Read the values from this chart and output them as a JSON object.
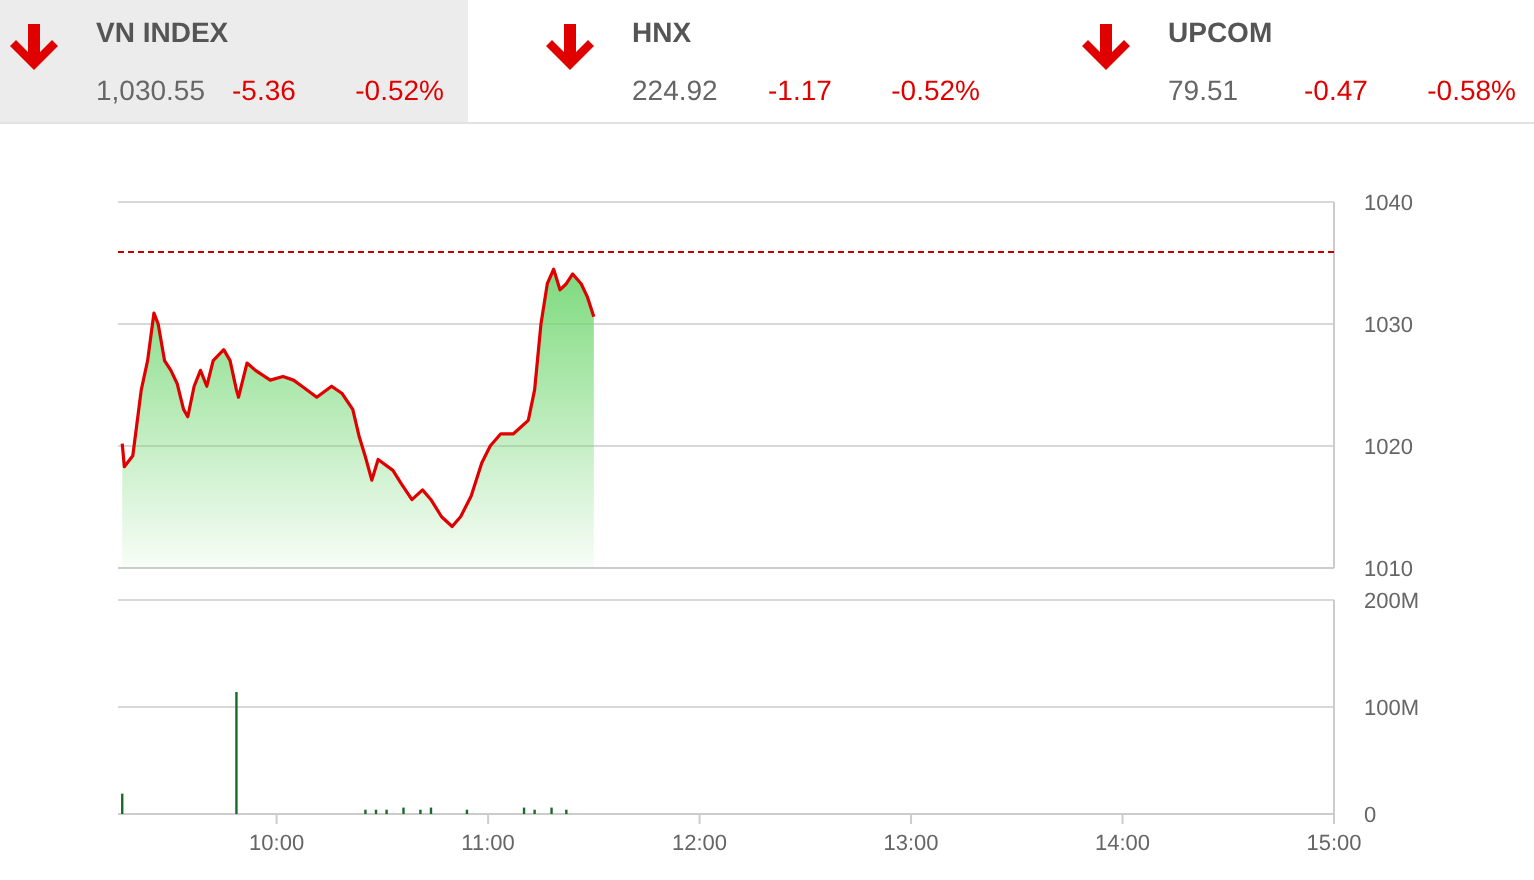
{
  "chart_data": [
    {
      "type": "other",
      "annotations": [
        "VN INDEX",
        "1,030.55",
        "-5.36",
        "-0.52%",
        "HNX",
        "224.92",
        "-1.17",
        "-0.52%",
        "UPCOM",
        "79.51",
        "-0.47",
        "-0.58%"
      ]
    },
    {
      "type": "area",
      "xlim": [
        9.25,
        15
      ],
      "ylim": [
        1010,
        1040
      ],
      "yticks": [
        1010,
        1020,
        1030,
        1040
      ],
      "grid": "y",
      "tick_labels": "y",
      "x": [
        9.27,
        9.28,
        9.32,
        9.36,
        9.39,
        9.42,
        9.44,
        9.47,
        9.5,
        9.53,
        9.56,
        9.58,
        9.61,
        9.64,
        9.67,
        9.7,
        9.75,
        9.78,
        9.81,
        9.82,
        9.86,
        9.9,
        9.97,
        10.03,
        10.08,
        10.12,
        10.19,
        10.26,
        10.31,
        10.36,
        10.39,
        10.42,
        10.45,
        10.48,
        10.55,
        10.59,
        10.64,
        10.69,
        10.73,
        10.78,
        10.83,
        10.87,
        10.92,
        10.97,
        11.01,
        11.06,
        11.12,
        11.19,
        11.22,
        11.25,
        11.28,
        11.31,
        11.34,
        11.37,
        11.4,
        11.44,
        11.47,
        11.5
      ],
      "series": [
        {
          "color": "#e00000",
          "values": [
            1020.2,
            1018.3,
            1019.2,
            1024.6,
            1027.0,
            1030.9,
            1030.0,
            1027.0,
            1026.2,
            1025.1,
            1023.0,
            1022.4,
            1024.9,
            1026.2,
            1024.9,
            1027.0,
            1027.9,
            1027.0,
            1024.6,
            1024.0,
            1026.8,
            1026.2,
            1025.4,
            1025.7,
            1025.4,
            1024.9,
            1024.0,
            1024.9,
            1024.3,
            1023.0,
            1020.8,
            1019.1,
            1017.2,
            1018.9,
            1018.0,
            1016.9,
            1015.6,
            1016.4,
            1015.6,
            1014.2,
            1013.4,
            1014.2,
            1015.9,
            1018.6,
            1020.0,
            1021.0,
            1021.0,
            1022.1,
            1024.6,
            1030.0,
            1033.3,
            1034.5,
            1032.8,
            1033.3,
            1034.1,
            1033.3,
            1032.2,
            1030.6
          ]
        }
      ],
      "ref_lines": [
        {
          "axis": "y",
          "value": 1035.91,
          "color": "#c00000",
          "line_style": "dashed"
        }
      ]
    },
    {
      "type": "bar",
      "xlim": [
        9.25,
        15
      ],
      "xticks": [
        {
          "value": 10,
          "label": "10:00"
        },
        {
          "value": 11,
          "label": "11:00"
        },
        {
          "value": 12,
          "label": "12:00"
        },
        {
          "value": 13,
          "label": "13:00"
        },
        {
          "value": 14,
          "label": "14:00"
        },
        {
          "value": 15,
          "label": "15:00"
        }
      ],
      "ylim": [
        0,
        200
      ],
      "yticks": [
        0,
        {
          "value": 100,
          "label": "100M"
        },
        {
          "value": 200,
          "label": "200M"
        }
      ],
      "grid": "y",
      "x": [
        9.27,
        9.81,
        10.42,
        10.47,
        10.52,
        10.6,
        10.68,
        10.73,
        10.9,
        11.17,
        11.22,
        11.3,
        11.37
      ],
      "series": [
        {
          "color": "#1a6b2a",
          "values": [
            19,
            114,
            4,
            4,
            4,
            6,
            4,
            6,
            4,
            6,
            4,
            6,
            4
          ]
        }
      ]
    }
  ]
}
